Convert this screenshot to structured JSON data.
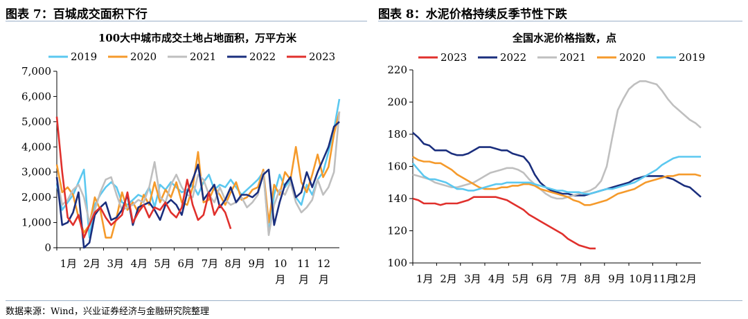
{
  "header": {
    "left_title": "图表 7：百城成交面积下行",
    "right_title": "图表 8：水泥价格持续反季节性下跌"
  },
  "footer": {
    "source": "数据来源：Wind，兴业证券经济与金融研究院整理"
  },
  "chart_data": [
    {
      "type": "line",
      "title": "100大中城市成交土地占地面积，万平方米",
      "xlabel": "",
      "ylabel": "",
      "ylim": [
        0,
        7000
      ],
      "yticks": [
        0,
        1000,
        2000,
        3000,
        4000,
        5000,
        6000,
        7000
      ],
      "ytick_labels": [
        "0",
        "1,000",
        "2,000",
        "3,000",
        "4,000",
        "5,000",
        "6,000",
        "7,000"
      ],
      "xlim": [
        0,
        52
      ],
      "xticks": [
        0,
        4.3,
        8.6,
        13,
        17.3,
        21.6,
        26,
        30.3,
        34.6,
        39,
        43.3,
        47.6
      ],
      "xtick_labels": [
        "1月",
        "2月",
        "3月",
        "4月",
        "5月",
        "6月",
        "7月",
        "8月",
        "9月",
        "10月",
        "11月",
        "12月"
      ],
      "legend_position": "top",
      "series": [
        {
          "name": "2019",
          "color": "#5bc8f0",
          "x": [
            0,
            1,
            2,
            3,
            4,
            5,
            6,
            7,
            8,
            9,
            10,
            11,
            12,
            13,
            14,
            15,
            16,
            17,
            18,
            19,
            20,
            21,
            22,
            23,
            24,
            25,
            26,
            27,
            28,
            29,
            30,
            31,
            32,
            33,
            34,
            35,
            36,
            37,
            38,
            39,
            40,
            41,
            42,
            43,
            44,
            45,
            46,
            47,
            48,
            49,
            50,
            51,
            52
          ],
          "values": [
            2500,
            1500,
            1800,
            2100,
            2600,
            3100,
            400,
            1700,
            2100,
            2400,
            2600,
            2400,
            1800,
            1700,
            1900,
            2100,
            2000,
            2400,
            1600,
            2500,
            2300,
            2600,
            2400,
            2200,
            2300,
            2500,
            2100,
            2600,
            2900,
            2300,
            2500,
            2400,
            2700,
            2400,
            2100,
            2300,
            2500,
            2700,
            3000,
            600,
            2100,
            2900,
            2400,
            2700,
            2000,
            1700,
            2500,
            2100,
            2700,
            3000,
            3800,
            4700,
            5900
          ]
        },
        {
          "name": "2020",
          "color": "#f59a2b",
          "x": [
            0,
            1,
            2,
            3,
            4,
            5,
            6,
            7,
            8,
            9,
            10,
            11,
            12,
            13,
            14,
            15,
            16,
            17,
            18,
            19,
            20,
            21,
            22,
            23,
            24,
            25,
            26,
            27,
            28,
            29,
            30,
            31,
            32,
            33,
            34,
            35,
            36,
            37,
            38,
            39,
            40,
            41,
            42,
            43,
            44,
            45,
            46,
            47,
            48,
            49,
            50,
            51,
            52
          ],
          "values": [
            3300,
            2200,
            2400,
            2100,
            1200,
            600,
            900,
            2000,
            1500,
            400,
            400,
            1200,
            2200,
            1500,
            1800,
            1400,
            2100,
            1700,
            2600,
            1800,
            2300,
            2000,
            2600,
            1800,
            1700,
            2400,
            3800,
            1800,
            1900,
            2400,
            2100,
            1700,
            2200,
            2600,
            1900,
            2000,
            2300,
            2400,
            3100,
            1000,
            2500,
            2100,
            3000,
            2700,
            4000,
            2600,
            2200,
            2900,
            3700,
            2800,
            3200,
            4500,
            5400
          ]
        },
        {
          "name": "2021",
          "color": "#bfbfbf",
          "x": [
            0,
            1,
            2,
            3,
            4,
            5,
            6,
            7,
            8,
            9,
            10,
            11,
            12,
            13,
            14,
            15,
            16,
            17,
            18,
            19,
            20,
            21,
            22,
            23,
            24,
            25,
            26,
            27,
            28,
            29,
            30,
            31,
            32,
            33,
            34,
            35,
            36,
            37,
            38,
            39,
            40,
            41,
            42,
            43,
            44,
            45,
            46,
            47,
            48,
            49,
            50,
            51,
            52
          ],
          "values": [
            2800,
            1700,
            1900,
            2300,
            2500,
            2000,
            1000,
            1500,
            2200,
            2700,
            2800,
            2100,
            1500,
            1600,
            1700,
            1900,
            1800,
            2400,
            3400,
            2000,
            1800,
            2500,
            2900,
            2400,
            2100,
            2000,
            2900,
            2700,
            2100,
            1800,
            2400,
            1900,
            1700,
            1800,
            2000,
            1600,
            1800,
            2100,
            3000,
            500,
            1700,
            2300,
            2100,
            2600,
            1800,
            1400,
            1600,
            1900,
            2700,
            2100,
            2400,
            3000,
            5400
          ]
        },
        {
          "name": "2022",
          "color": "#1a2e7d",
          "x": [
            0,
            1,
            2,
            3,
            4,
            5,
            6,
            7,
            8,
            9,
            10,
            11,
            12,
            13,
            14,
            15,
            16,
            17,
            18,
            19,
            20,
            21,
            22,
            23,
            24,
            25,
            26,
            27,
            28,
            29,
            30,
            31,
            32,
            33,
            34,
            35,
            36,
            37,
            38,
            39,
            40,
            41,
            42,
            43,
            44,
            45,
            46,
            47,
            48,
            49,
            50,
            51,
            52
          ],
          "values": [
            2800,
            900,
            1000,
            1400,
            2200,
            0,
            200,
            1300,
            1600,
            1800,
            1100,
            1200,
            1500,
            2100,
            900,
            1600,
            1700,
            1800,
            1500,
            1100,
            1700,
            1900,
            1700,
            1300,
            2200,
            2700,
            3300,
            1900,
            2200,
            2500,
            1600,
            1900,
            2400,
            1800,
            2100,
            2100,
            2000,
            2200,
            2900,
            3100,
            900,
            1800,
            2500,
            2800,
            2000,
            2200,
            3000,
            2400,
            3000,
            3500,
            4000,
            4800,
            5000
          ]
        },
        {
          "name": "2023",
          "color": "#e0302c",
          "x": [
            0,
            1,
            2,
            3,
            4,
            5,
            6,
            7,
            8,
            9,
            10,
            11,
            12,
            13,
            14,
            15,
            16,
            17,
            18,
            19,
            20,
            21,
            22,
            23,
            24,
            25,
            26,
            27,
            28,
            29,
            30,
            31,
            32
          ],
          "values": [
            5200,
            3000,
            1200,
            900,
            1300,
            400,
            900,
            1400,
            1600,
            1200,
            900,
            1100,
            1300,
            2200,
            1000,
            1400,
            1700,
            1200,
            1600,
            1500,
            1800,
            1400,
            1200,
            1600,
            2700,
            1700,
            1100,
            1300,
            2200,
            1300,
            1700,
            1400,
            750
          ]
        }
      ]
    },
    {
      "type": "line",
      "title": "全国水泥价格指数，点",
      "xlabel": "",
      "ylabel": "",
      "ylim": [
        100,
        220
      ],
      "yticks": [
        100,
        120,
        140,
        160,
        180,
        200,
        220
      ],
      "ytick_labels": [
        "100",
        "120",
        "140",
        "160",
        "180",
        "200",
        "220"
      ],
      "xlim": [
        0,
        52
      ],
      "xticks": [
        0,
        4.3,
        8.6,
        13,
        17.3,
        21.6,
        26,
        30.3,
        34.6,
        39,
        43.3,
        47.6
      ],
      "xtick_labels": [
        "1月",
        "2月",
        "3月",
        "4月",
        "5月",
        "6月",
        "7月",
        "8月",
        "9月",
        "10月",
        "11月",
        "12月"
      ],
      "legend_position": "top",
      "series": [
        {
          "name": "2023",
          "color": "#e0302c",
          "x": [
            0,
            1,
            2,
            3,
            4,
            5,
            6,
            7,
            8,
            9,
            10,
            11,
            12,
            13,
            14,
            15,
            16,
            17,
            18,
            19,
            20,
            21,
            22,
            23,
            24,
            25,
            26,
            27,
            28,
            29,
            30,
            31,
            32,
            33
          ],
          "values": [
            140,
            139,
            137,
            137,
            137,
            136,
            137,
            137,
            137,
            138,
            139,
            141,
            141,
            141,
            141,
            141,
            140,
            139,
            137,
            135,
            133,
            130,
            128,
            126,
            124,
            122,
            120,
            118,
            115,
            113,
            111,
            110,
            109,
            109
          ]
        },
        {
          "name": "2022",
          "color": "#1a2e7d",
          "x": [
            0,
            1,
            2,
            3,
            4,
            5,
            6,
            7,
            8,
            9,
            10,
            11,
            12,
            13,
            14,
            15,
            16,
            17,
            18,
            19,
            20,
            21,
            22,
            23,
            24,
            25,
            26,
            27,
            28,
            29,
            30,
            31,
            32,
            33,
            34,
            35,
            36,
            37,
            38,
            39,
            40,
            41,
            42,
            43,
            44,
            45,
            46,
            47,
            48,
            49,
            50,
            51,
            52
          ],
          "values": [
            181,
            178,
            174,
            173,
            170,
            170,
            170,
            168,
            167,
            167,
            168,
            170,
            172,
            172,
            172,
            171,
            170,
            170,
            168,
            167,
            166,
            162,
            155,
            150,
            147,
            145,
            144,
            143,
            143,
            142,
            142,
            142,
            143,
            144,
            145,
            146,
            147,
            148,
            149,
            150,
            152,
            153,
            154,
            154,
            154,
            154,
            153,
            152,
            150,
            148,
            147,
            144,
            141
          ]
        },
        {
          "name": "2021",
          "color": "#bfbfbf",
          "x": [
            0,
            1,
            2,
            3,
            4,
            5,
            6,
            7,
            8,
            9,
            10,
            11,
            12,
            13,
            14,
            15,
            16,
            17,
            18,
            19,
            20,
            21,
            22,
            23,
            24,
            25,
            26,
            27,
            28,
            29,
            30,
            31,
            32,
            33,
            34,
            35,
            36,
            37,
            38,
            39,
            40,
            41,
            42,
            43,
            44,
            45,
            46,
            47,
            48,
            49,
            50,
            51,
            52
          ],
          "values": [
            155,
            154,
            153,
            152,
            150,
            149,
            148,
            147,
            147,
            148,
            149,
            150,
            152,
            154,
            156,
            157,
            158,
            159,
            159,
            158,
            156,
            152,
            149,
            146,
            143,
            141,
            140,
            140,
            141,
            142,
            143,
            144,
            145,
            147,
            151,
            160,
            178,
            195,
            202,
            208,
            211,
            213,
            213,
            212,
            211,
            207,
            202,
            198,
            195,
            192,
            189,
            187,
            184
          ]
        },
        {
          "name": "2020",
          "color": "#f59a2b",
          "x": [
            0,
            1,
            2,
            3,
            4,
            5,
            6,
            7,
            8,
            9,
            10,
            11,
            12,
            13,
            14,
            15,
            16,
            17,
            18,
            19,
            20,
            21,
            22,
            23,
            24,
            25,
            26,
            27,
            28,
            29,
            30,
            31,
            32,
            33,
            34,
            35,
            36,
            37,
            38,
            39,
            40,
            41,
            42,
            43,
            44,
            45,
            46,
            47,
            48,
            49,
            50,
            51,
            52
          ],
          "values": [
            166,
            164,
            163,
            163,
            162,
            162,
            160,
            158,
            155,
            153,
            151,
            149,
            147,
            146,
            146,
            146,
            147,
            147,
            148,
            148,
            149,
            149,
            148,
            146,
            145,
            144,
            143,
            142,
            141,
            139,
            138,
            136,
            136,
            137,
            138,
            139,
            141,
            143,
            144,
            145,
            146,
            148,
            150,
            151,
            152,
            153,
            154,
            154,
            155,
            155,
            155,
            155,
            154
          ]
        },
        {
          "name": "2019",
          "color": "#5bc8f0",
          "x": [
            0,
            1,
            2,
            3,
            4,
            5,
            6,
            7,
            8,
            9,
            10,
            11,
            12,
            13,
            14,
            15,
            16,
            17,
            18,
            19,
            20,
            21,
            22,
            23,
            24,
            25,
            26,
            27,
            28,
            29,
            30,
            31,
            32,
            33,
            34,
            35,
            36,
            37,
            38,
            39,
            40,
            41,
            42,
            43,
            44,
            45,
            46,
            47,
            48,
            49,
            50,
            51,
            52
          ],
          "values": [
            162,
            158,
            154,
            152,
            152,
            151,
            150,
            148,
            146,
            146,
            145,
            145,
            146,
            147,
            148,
            149,
            149,
            150,
            150,
            150,
            150,
            150,
            149,
            148,
            147,
            146,
            145,
            145,
            144,
            144,
            144,
            143,
            143,
            144,
            145,
            146,
            146,
            147,
            148,
            149,
            150,
            152,
            154,
            156,
            158,
            161,
            163,
            165,
            166,
            166,
            166,
            166,
            166
          ]
        }
      ]
    }
  ]
}
